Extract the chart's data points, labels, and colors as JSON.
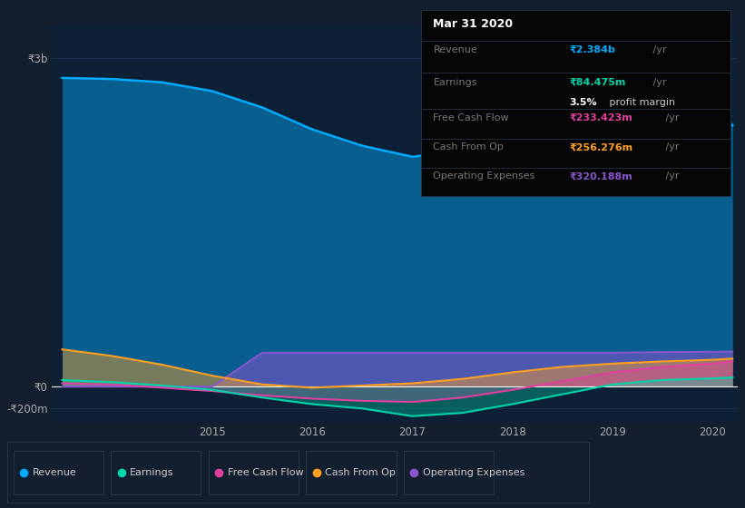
{
  "bg_color": "#131e2e",
  "plot_bg_color": "#0d2035",
  "grid_color": "#1a3050",
  "years": [
    2013.5,
    2014.0,
    2014.5,
    2015.0,
    2015.5,
    2016.0,
    2016.5,
    2017.0,
    2017.5,
    2018.0,
    2018.5,
    2019.0,
    2019.5,
    2020.0,
    2020.2
  ],
  "revenue": [
    2820,
    2810,
    2780,
    2700,
    2550,
    2350,
    2200,
    2100,
    2150,
    2300,
    2500,
    2680,
    2730,
    2650,
    2384
  ],
  "earnings": [
    60,
    40,
    10,
    -30,
    -100,
    -160,
    -200,
    -270,
    -240,
    -160,
    -70,
    20,
    60,
    75,
    84
  ],
  "free_cash_flow": [
    30,
    20,
    -10,
    -40,
    -80,
    -110,
    -130,
    -140,
    -100,
    -30,
    50,
    130,
    180,
    210,
    233
  ],
  "cash_from_op": [
    340,
    280,
    200,
    100,
    20,
    -10,
    10,
    30,
    70,
    130,
    180,
    210,
    230,
    245,
    256
  ],
  "operating_expenses": [
    0,
    0,
    0,
    0,
    310,
    310,
    310,
    310,
    310,
    310,
    310,
    310,
    315,
    318,
    320
  ],
  "revenue_color": "#00aaff",
  "earnings_color": "#00d4aa",
  "fcf_color": "#e040a0",
  "cashop_color": "#ffa020",
  "opex_color": "#8855cc",
  "ylim_min": -320,
  "ylim_max": 3300,
  "ytick_labels": [
    "₹3b",
    "₹0",
    "-₹200m"
  ],
  "ytick_vals": [
    3000,
    0,
    -200
  ],
  "xtick_labels": [
    "2015",
    "2016",
    "2017",
    "2018",
    "2019",
    "2020"
  ],
  "xtick_vals": [
    2015,
    2016,
    2017,
    2018,
    2019,
    2020
  ],
  "legend_labels": [
    "Revenue",
    "Earnings",
    "Free Cash Flow",
    "Cash From Op",
    "Operating Expenses"
  ]
}
